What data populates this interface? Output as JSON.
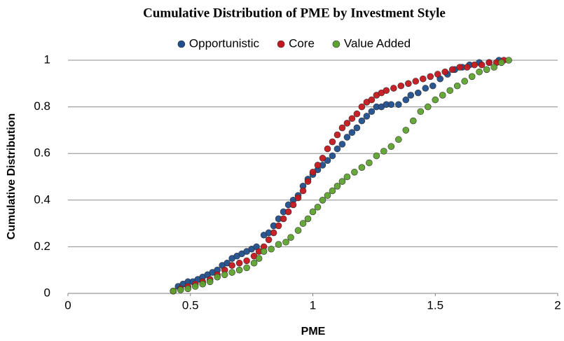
{
  "chart_data": {
    "type": "scatter",
    "title": "Cumulative Distribution of PME by Investment Style",
    "xlabel": "PME",
    "ylabel": "Cumulative Distribution",
    "xlim": [
      0,
      2
    ],
    "xticks": [
      0,
      0.5,
      1,
      1.5,
      2
    ],
    "ylim": [
      0,
      1
    ],
    "yticks": [
      0,
      0.2,
      0.4,
      0.6,
      0.8,
      1
    ],
    "grid": true,
    "legend": "top",
    "series": [
      {
        "name": "Opportunistic",
        "color": "#1f4e8c",
        "x": [
          0.43,
          0.45,
          0.47,
          0.49,
          0.51,
          0.53,
          0.55,
          0.57,
          0.59,
          0.61,
          0.63,
          0.65,
          0.67,
          0.69,
          0.71,
          0.73,
          0.75,
          0.77,
          0.8,
          0.82,
          0.84,
          0.86,
          0.88,
          0.9,
          0.92,
          0.94,
          0.96,
          0.98,
          1.0,
          1.02,
          1.04,
          1.06,
          1.08,
          1.1,
          1.12,
          1.14,
          1.16,
          1.18,
          1.2,
          1.22,
          1.24,
          1.26,
          1.28,
          1.3,
          1.32,
          1.35,
          1.38,
          1.4,
          1.43,
          1.46,
          1.49,
          1.52,
          1.55,
          1.58,
          1.61,
          1.64,
          1.68,
          1.72,
          1.76
        ],
        "values": [
          0.01,
          0.03,
          0.04,
          0.05,
          0.05,
          0.06,
          0.07,
          0.08,
          0.09,
          0.1,
          0.12,
          0.13,
          0.15,
          0.16,
          0.17,
          0.18,
          0.19,
          0.2,
          0.25,
          0.26,
          0.29,
          0.32,
          0.35,
          0.38,
          0.4,
          0.42,
          0.46,
          0.49,
          0.51,
          0.53,
          0.55,
          0.57,
          0.59,
          0.62,
          0.64,
          0.67,
          0.69,
          0.71,
          0.74,
          0.76,
          0.78,
          0.8,
          0.8,
          0.81,
          0.81,
          0.81,
          0.83,
          0.85,
          0.86,
          0.88,
          0.89,
          0.92,
          0.94,
          0.96,
          0.97,
          0.98,
          0.99,
          0.99,
          1.0
        ]
      },
      {
        "name": "Core",
        "color": "#c4161c",
        "x": [
          0.43,
          0.46,
          0.49,
          0.52,
          0.55,
          0.58,
          0.61,
          0.64,
          0.67,
          0.7,
          0.73,
          0.76,
          0.78,
          0.8,
          0.82,
          0.84,
          0.86,
          0.88,
          0.9,
          0.92,
          0.94,
          0.96,
          0.98,
          1.0,
          1.02,
          1.04,
          1.06,
          1.08,
          1.1,
          1.12,
          1.14,
          1.16,
          1.18,
          1.2,
          1.22,
          1.24,
          1.26,
          1.28,
          1.3,
          1.33,
          1.36,
          1.39,
          1.42,
          1.45,
          1.48,
          1.51,
          1.54,
          1.57,
          1.6,
          1.63,
          1.66,
          1.69,
          1.72,
          1.75,
          1.78
        ],
        "values": [
          0.01,
          0.02,
          0.03,
          0.04,
          0.05,
          0.06,
          0.08,
          0.1,
          0.12,
          0.13,
          0.14,
          0.16,
          0.18,
          0.2,
          0.23,
          0.26,
          0.29,
          0.32,
          0.35,
          0.38,
          0.41,
          0.44,
          0.48,
          0.52,
          0.55,
          0.58,
          0.62,
          0.65,
          0.68,
          0.71,
          0.73,
          0.75,
          0.77,
          0.8,
          0.82,
          0.83,
          0.85,
          0.86,
          0.87,
          0.88,
          0.89,
          0.9,
          0.91,
          0.92,
          0.93,
          0.94,
          0.95,
          0.96,
          0.97,
          0.97,
          0.98,
          0.98,
          0.99,
          0.99,
          1.0
        ]
      },
      {
        "name": "Value Added",
        "color": "#5ea32e",
        "x": [
          0.43,
          0.46,
          0.49,
          0.52,
          0.55,
          0.58,
          0.61,
          0.64,
          0.67,
          0.7,
          0.73,
          0.76,
          0.78,
          0.8,
          0.83,
          0.86,
          0.89,
          0.91,
          0.94,
          0.96,
          0.98,
          1.0,
          1.02,
          1.04,
          1.06,
          1.08,
          1.1,
          1.12,
          1.14,
          1.17,
          1.2,
          1.23,
          1.26,
          1.29,
          1.32,
          1.35,
          1.38,
          1.41,
          1.44,
          1.47,
          1.5,
          1.53,
          1.56,
          1.59,
          1.62,
          1.65,
          1.68,
          1.71,
          1.74,
          1.77,
          1.8
        ],
        "values": [
          0.01,
          0.015,
          0.02,
          0.03,
          0.04,
          0.05,
          0.07,
          0.08,
          0.09,
          0.1,
          0.11,
          0.13,
          0.15,
          0.18,
          0.19,
          0.21,
          0.22,
          0.24,
          0.27,
          0.3,
          0.32,
          0.35,
          0.37,
          0.4,
          0.42,
          0.44,
          0.46,
          0.48,
          0.5,
          0.52,
          0.54,
          0.56,
          0.59,
          0.61,
          0.63,
          0.66,
          0.7,
          0.74,
          0.78,
          0.8,
          0.83,
          0.85,
          0.87,
          0.89,
          0.91,
          0.93,
          0.95,
          0.96,
          0.97,
          0.99,
          1.0
        ]
      }
    ]
  }
}
